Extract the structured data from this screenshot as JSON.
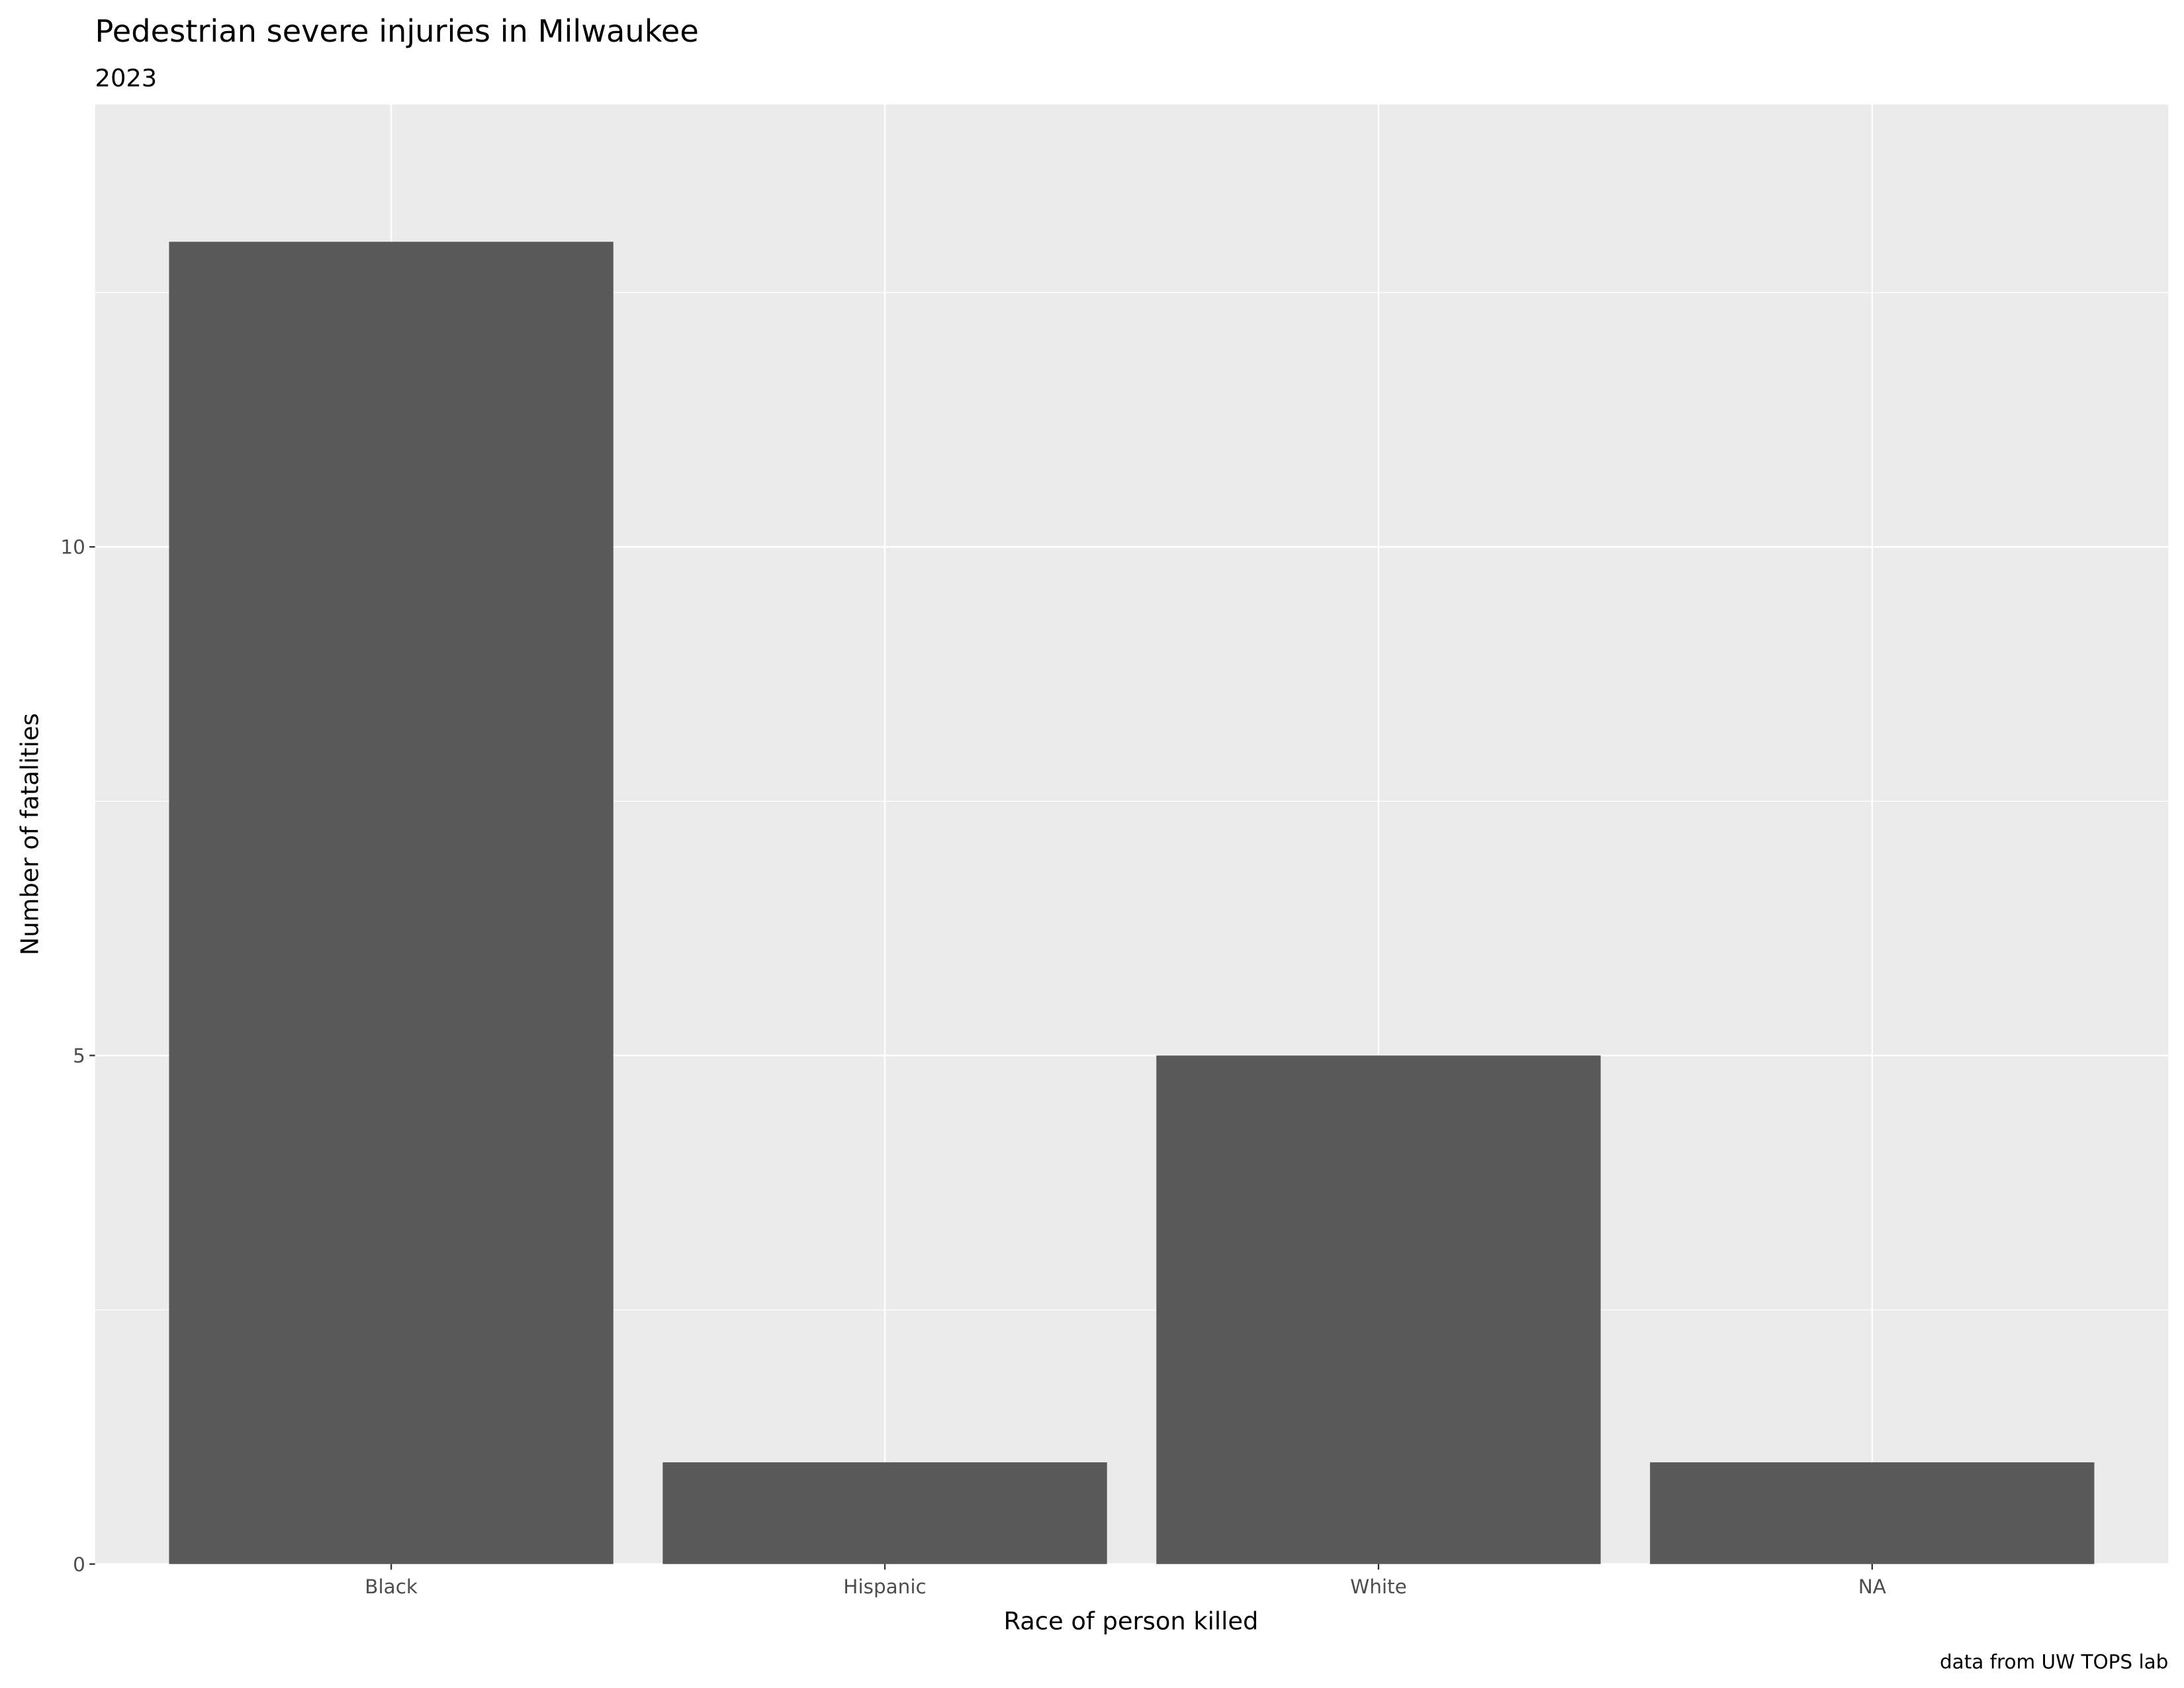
{
  "chart_data": {
    "type": "bar",
    "title": "Pedestrian severe injuries in Milwaukee",
    "subtitle": "2023",
    "xlabel": "Race of person killed",
    "ylabel": "Number of fatalities",
    "caption": "data from UW TOPS lab",
    "categories": [
      "Black",
      "Hispanic",
      "White",
      "NA"
    ],
    "values": [
      13,
      1,
      5,
      1
    ],
    "ylim": [
      0,
      14.35
    ],
    "yticks": [
      0,
      5,
      10
    ],
    "ytick_labels": [
      "0",
      "5",
      "10"
    ],
    "grid": true,
    "colors": {
      "bar": "#595959",
      "panel": "#ebebeb",
      "grid": "#ffffff"
    }
  }
}
